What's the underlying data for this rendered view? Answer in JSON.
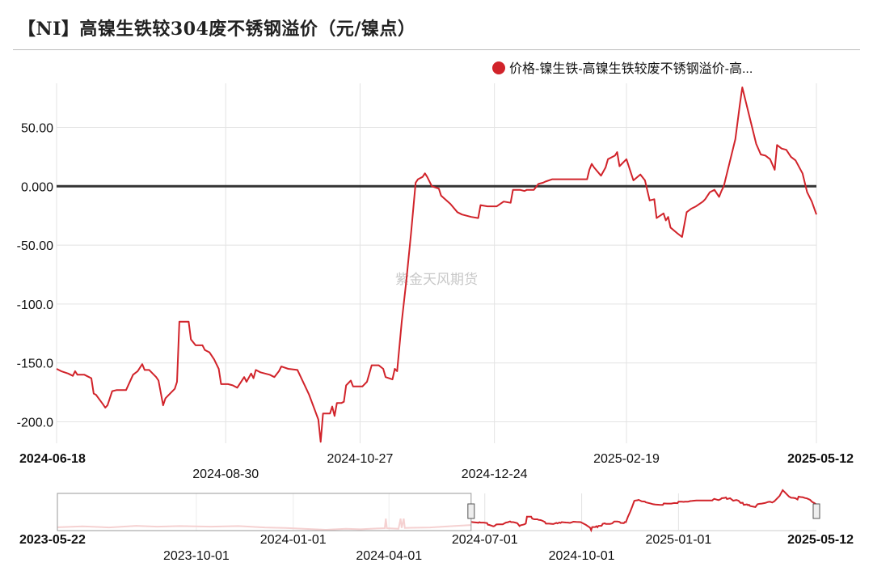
{
  "title": "【NI】高镍生铁较304废不锈钢溢价（元/镍点）",
  "watermark": "紫金天风期货",
  "colors": {
    "series": "#d1232a",
    "zero_line": "#333333",
    "grid": "#e3e3e3",
    "navigator_faded": "#f0b8b8"
  },
  "chart_data": {
    "type": "line",
    "title": "【NI】高镍生铁较304废不锈钢溢价（元/镍点）",
    "xlabel": "",
    "ylabel": "",
    "ylim": [
      -220,
      85
    ],
    "yticks": [
      50,
      0,
      -50,
      -100,
      -150,
      -200
    ],
    "ytick_labels": [
      "50.00",
      "0.000",
      "-50.00",
      "-100.0",
      "-150.0",
      "-200.0"
    ],
    "xlim": [
      "2024-06-18",
      "2025-05-12"
    ],
    "xticks": [
      {
        "date": "2024-06-18",
        "label": "2024-06-18",
        "bold": true,
        "row": 1
      },
      {
        "date": "2024-08-30",
        "label": "2024-08-30",
        "bold": false,
        "row": 2
      },
      {
        "date": "2024-10-27",
        "label": "2024-10-27",
        "bold": false,
        "row": 1
      },
      {
        "date": "2024-12-24",
        "label": "2024-12-24",
        "bold": false,
        "row": 2
      },
      {
        "date": "2025-02-19",
        "label": "2025-02-19",
        "bold": false,
        "row": 1
      },
      {
        "date": "2025-05-12",
        "label": "2025-05-12",
        "bold": true,
        "row": 1
      }
    ],
    "grid": true,
    "zero_line": true,
    "legend": {
      "placement": "top-right",
      "entries": [
        "价格-镍生铁-高镍生铁较废不锈钢溢价-高..."
      ]
    },
    "series": [
      {
        "name": "价格-镍生铁-高镍生铁较废不锈钢溢价-高...",
        "points": [
          [
            "2024-06-18",
            -155
          ],
          [
            "2024-06-20",
            -157
          ],
          [
            "2024-06-23",
            -159
          ],
          [
            "2024-06-25",
            -161
          ],
          [
            "2024-06-26",
            -157
          ],
          [
            "2024-06-27",
            -160
          ],
          [
            "2024-06-30",
            -160
          ],
          [
            "2024-07-02",
            -162
          ],
          [
            "2024-07-03",
            -163
          ],
          [
            "2024-07-04",
            -176
          ],
          [
            "2024-07-05",
            -177
          ],
          [
            "2024-07-08",
            -185
          ],
          [
            "2024-07-09",
            -188
          ],
          [
            "2024-07-10",
            -186
          ],
          [
            "2024-07-12",
            -174
          ],
          [
            "2024-07-14",
            -173
          ],
          [
            "2024-07-16",
            -173
          ],
          [
            "2024-07-18",
            -173
          ],
          [
            "2024-07-21",
            -160
          ],
          [
            "2024-07-23",
            -157
          ],
          [
            "2024-07-25",
            -151
          ],
          [
            "2024-07-26",
            -156
          ],
          [
            "2024-07-28",
            -156
          ],
          [
            "2024-07-31",
            -162
          ],
          [
            "2024-08-01",
            -165
          ],
          [
            "2024-08-03",
            -186
          ],
          [
            "2024-08-04",
            -180
          ],
          [
            "2024-08-06",
            -176
          ],
          [
            "2024-08-08",
            -172
          ],
          [
            "2024-08-09",
            -166
          ],
          [
            "2024-08-10",
            -115
          ],
          [
            "2024-08-14",
            -115
          ],
          [
            "2024-08-15",
            -130
          ],
          [
            "2024-08-17",
            -135
          ],
          [
            "2024-08-20",
            -135
          ],
          [
            "2024-08-21",
            -139
          ],
          [
            "2024-08-23",
            -141
          ],
          [
            "2024-08-25",
            -147
          ],
          [
            "2024-08-27",
            -155
          ],
          [
            "2024-08-28",
            -168
          ],
          [
            "2024-08-31",
            -168
          ],
          [
            "2024-09-02",
            -169
          ],
          [
            "2024-09-04",
            -171
          ],
          [
            "2024-09-05",
            -168
          ],
          [
            "2024-09-07",
            -162
          ],
          [
            "2024-09-08",
            -166
          ],
          [
            "2024-09-10",
            -159
          ],
          [
            "2024-09-11",
            -163
          ],
          [
            "2024-09-12",
            -156
          ],
          [
            "2024-09-14",
            -158
          ],
          [
            "2024-09-16",
            -159
          ],
          [
            "2024-09-18",
            -160
          ],
          [
            "2024-09-20",
            -162
          ],
          [
            "2024-09-22",
            -157
          ],
          [
            "2024-09-23",
            -153
          ],
          [
            "2024-09-26",
            -155
          ],
          [
            "2024-09-30",
            -156
          ],
          [
            "2024-10-05",
            -177
          ],
          [
            "2024-10-09",
            -198
          ],
          [
            "2024-10-10",
            -217
          ],
          [
            "2024-10-11",
            -193
          ],
          [
            "2024-10-14",
            -193
          ],
          [
            "2024-10-15",
            -187
          ],
          [
            "2024-10-16",
            -195
          ],
          [
            "2024-10-17",
            -184
          ],
          [
            "2024-10-19",
            -184
          ],
          [
            "2024-10-20",
            -183
          ],
          [
            "2024-10-21",
            -169
          ],
          [
            "2024-10-23",
            -165
          ],
          [
            "2024-10-24",
            -170
          ],
          [
            "2024-10-27",
            -170
          ],
          [
            "2024-10-28",
            -170
          ],
          [
            "2024-10-30",
            -166
          ],
          [
            "2024-11-01",
            -152
          ],
          [
            "2024-11-04",
            -152
          ],
          [
            "2024-11-06",
            -155
          ],
          [
            "2024-11-07",
            -162
          ],
          [
            "2024-11-10",
            -164
          ],
          [
            "2024-11-11",
            -155
          ],
          [
            "2024-11-12",
            -157
          ],
          [
            "2024-11-14",
            -115
          ],
          [
            "2024-11-16",
            -80
          ],
          [
            "2024-11-18",
            -40
          ],
          [
            "2024-11-20",
            3
          ],
          [
            "2024-11-21",
            6
          ],
          [
            "2024-11-23",
            8
          ],
          [
            "2024-11-24",
            11
          ],
          [
            "2024-11-25",
            8
          ],
          [
            "2024-11-27",
            0
          ],
          [
            "2024-11-30",
            -2
          ],
          [
            "2024-12-01",
            -8
          ],
          [
            "2024-12-05",
            -15
          ],
          [
            "2024-12-08",
            -22
          ],
          [
            "2024-12-10",
            -24
          ],
          [
            "2024-12-14",
            -26
          ],
          [
            "2024-12-17",
            -27
          ],
          [
            "2024-12-18",
            -16
          ],
          [
            "2024-12-21",
            -17
          ],
          [
            "2024-12-25",
            -17
          ],
          [
            "2024-12-28",
            -13
          ],
          [
            "2024-12-31",
            -14
          ],
          [
            "2025-01-01",
            -3
          ],
          [
            "2025-01-03",
            -3
          ],
          [
            "2025-01-04",
            -3
          ],
          [
            "2025-01-06",
            -4
          ],
          [
            "2025-01-07",
            -3
          ],
          [
            "2025-01-10",
            -3
          ],
          [
            "2025-01-12",
            2
          ],
          [
            "2025-01-14",
            3
          ],
          [
            "2025-01-15",
            4
          ],
          [
            "2025-01-18",
            6
          ],
          [
            "2025-01-21",
            6
          ],
          [
            "2025-01-24",
            6
          ],
          [
            "2025-01-28",
            6
          ],
          [
            "2025-02-02",
            6
          ],
          [
            "2025-02-03",
            14
          ],
          [
            "2025-02-04",
            19
          ],
          [
            "2025-02-05",
            16
          ],
          [
            "2025-02-08",
            9
          ],
          [
            "2025-02-10",
            16
          ],
          [
            "2025-02-11",
            23
          ],
          [
            "2025-02-14",
            26
          ],
          [
            "2025-02-15",
            29
          ],
          [
            "2025-02-16",
            17
          ],
          [
            "2025-02-19",
            23
          ],
          [
            "2025-02-22",
            5
          ],
          [
            "2025-02-25",
            10
          ],
          [
            "2025-02-27",
            5
          ],
          [
            "2025-03-01",
            -12
          ],
          [
            "2025-03-03",
            -11
          ],
          [
            "2025-03-04",
            -27
          ],
          [
            "2025-03-07",
            -23
          ],
          [
            "2025-03-08",
            -29
          ],
          [
            "2025-03-09",
            -26
          ],
          [
            "2025-03-10",
            -35
          ],
          [
            "2025-03-13",
            -40
          ],
          [
            "2025-03-15",
            -43
          ],
          [
            "2025-03-17",
            -22
          ],
          [
            "2025-03-19",
            -19
          ],
          [
            "2025-03-21",
            -17
          ],
          [
            "2025-03-24",
            -13
          ],
          [
            "2025-03-25",
            -11
          ],
          [
            "2025-03-27",
            -5
          ],
          [
            "2025-03-29",
            -3
          ],
          [
            "2025-03-31",
            -9
          ],
          [
            "2025-04-01",
            -4
          ],
          [
            "2025-04-02",
            0
          ],
          [
            "2025-04-07",
            40
          ],
          [
            "2025-04-09",
            70
          ],
          [
            "2025-04-10",
            84
          ],
          [
            "2025-04-12",
            68
          ],
          [
            "2025-04-16",
            36
          ],
          [
            "2025-04-18",
            27
          ],
          [
            "2025-04-20",
            26
          ],
          [
            "2025-04-22",
            23
          ],
          [
            "2025-04-24",
            14
          ],
          [
            "2025-04-25",
            35
          ],
          [
            "2025-04-27",
            32
          ],
          [
            "2025-04-29",
            31
          ],
          [
            "2025-05-01",
            25
          ],
          [
            "2025-05-03",
            22
          ],
          [
            "2025-05-06",
            11
          ],
          [
            "2025-05-08",
            -5
          ],
          [
            "2025-05-10",
            -13
          ],
          [
            "2025-05-12",
            -24
          ]
        ]
      }
    ],
    "navigator": {
      "xlim": [
        "2023-05-22",
        "2025-05-12"
      ],
      "selection": [
        "2024-06-18",
        "2025-05-12"
      ],
      "xticks": [
        {
          "date": "2023-05-22",
          "label": "2023-05-22",
          "bold": true,
          "row": 1
        },
        {
          "date": "2023-10-01",
          "label": "2023-10-01",
          "bold": false,
          "row": 2
        },
        {
          "date": "2024-01-01",
          "label": "2024-01-01",
          "bold": false,
          "row": 1
        },
        {
          "date": "2024-04-01",
          "label": "2024-04-01",
          "bold": false,
          "row": 2
        },
        {
          "date": "2024-07-01",
          "label": "2024-07-01",
          "bold": false,
          "row": 1
        },
        {
          "date": "2024-10-01",
          "label": "2024-10-01",
          "bold": false,
          "row": 2
        },
        {
          "date": "2025-01-01",
          "label": "2025-01-01",
          "bold": false,
          "row": 1
        },
        {
          "date": "2025-05-12",
          "label": "2025-05-12",
          "bold": true,
          "row": 1
        }
      ],
      "series_before_selection": [
        [
          "2023-05-22",
          -195
        ],
        [
          "2023-06-15",
          -188
        ],
        [
          "2023-07-10",
          -196
        ],
        [
          "2023-08-05",
          -184
        ],
        [
          "2023-08-25",
          -190
        ],
        [
          "2023-09-15",
          -186
        ],
        [
          "2023-10-15",
          -190
        ],
        [
          "2023-11-10",
          -186
        ],
        [
          "2023-12-05",
          -196
        ],
        [
          "2023-12-25",
          -200
        ],
        [
          "2024-01-15",
          -208
        ],
        [
          "2024-02-01",
          -214
        ],
        [
          "2024-02-20",
          -206
        ],
        [
          "2024-03-05",
          -210
        ],
        [
          "2024-03-20",
          -204
        ],
        [
          "2024-03-28",
          -202
        ],
        [
          "2024-03-29",
          -130
        ],
        [
          "2024-03-30",
          -202
        ],
        [
          "2024-04-10",
          -206
        ],
        [
          "2024-04-12",
          -130
        ],
        [
          "2024-04-13",
          -200
        ],
        [
          "2024-04-15",
          -130
        ],
        [
          "2024-04-16",
          -200
        ],
        [
          "2024-05-10",
          -196
        ],
        [
          "2024-06-01",
          -186
        ],
        [
          "2024-06-18",
          -178
        ]
      ]
    }
  }
}
